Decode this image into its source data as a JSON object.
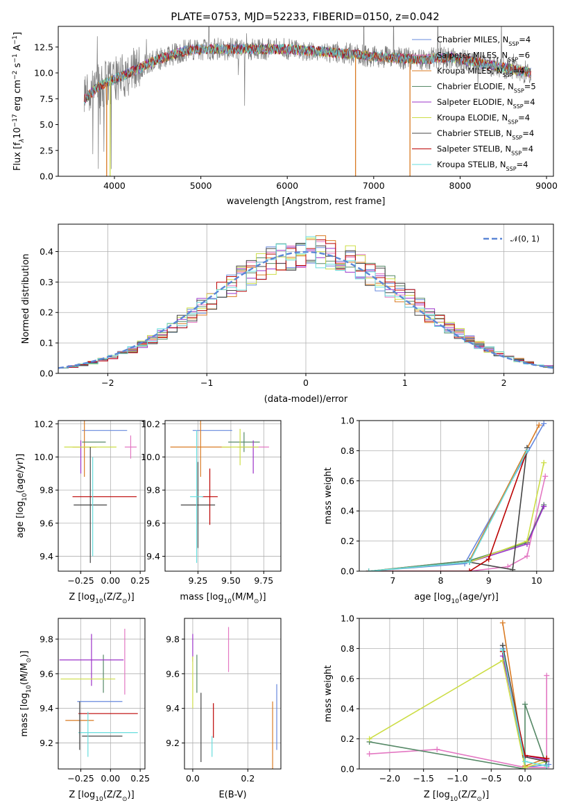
{
  "figure_title": "PLATE=0753, MJD=52233, FIBERID=0150, z=0.042",
  "series": [
    {
      "name": "Chabrier MILES, N",
      "sub": "SSP",
      "tail": "=4",
      "color": "#6688dd"
    },
    {
      "name": "Salpeter MILES, N",
      "sub": "SSP",
      "tail": "=6",
      "color": "#e377c2"
    },
    {
      "name": "Kroupa MILES, N",
      "sub": "SSP",
      "tail": "=4",
      "color": "#d97a22"
    },
    {
      "name": "Chabrier ELODIE, N",
      "sub": "SSP",
      "tail": "=5",
      "color": "#558866"
    },
    {
      "name": "Salpeter ELODIE, N",
      "sub": "SSP",
      "tail": "=4",
      "color": "#9b30c8"
    },
    {
      "name": "Kroupa ELODIE, N",
      "sub": "SSP",
      "tail": "=4",
      "color": "#ccdd44"
    },
    {
      "name": "Chabrier STELIB, N",
      "sub": "SSP",
      "tail": "=4",
      "color": "#444444"
    },
    {
      "name": "Salpeter STELIB, N",
      "sub": "SSP",
      "tail": "=4",
      "color": "#bb0000"
    },
    {
      "name": "Kroupa STELIB, N",
      "sub": "SSP",
      "tail": "=4",
      "color": "#66dddd"
    }
  ],
  "chart_data": [
    {
      "id": "spectrum",
      "type": "line",
      "xlabel": "wavelength [Angstrom, rest frame]",
      "ylabel": "Flux [f",
      "ylabel_sub": "λ",
      "ylabel_mid": "10",
      "ylabel_sup1": "−17",
      "ylabel_tail1": " erg cm",
      "ylabel_sup2": "−2",
      "ylabel_tail2": " s",
      "ylabel_sup3": "−1",
      "ylabel_tail3": " A",
      "ylabel_sup4": "−1",
      "ylabel_end": "]",
      "xlim": [
        3350,
        9080
      ],
      "ylim": [
        0,
        14.5
      ],
      "xticks": [
        4000,
        5000,
        6000,
        7000,
        8000,
        9000
      ],
      "yticks": [
        0.0,
        2.5,
        5.0,
        7.5,
        10.0,
        12.5
      ],
      "ytick_labels": [
        "0.0",
        "2.5",
        "5.0",
        "7.5",
        "10.0",
        "12.5"
      ],
      "data_range": [
        3650,
        8820
      ],
      "continuum": [
        [
          3650,
          7.4
        ],
        [
          3800,
          8.6
        ],
        [
          4000,
          9.4
        ],
        [
          4200,
          10.1
        ],
        [
          4500,
          11.3
        ],
        [
          4800,
          12.1
        ],
        [
          5000,
          12.3
        ],
        [
          5500,
          12.3
        ],
        [
          6000,
          12.3
        ],
        [
          6500,
          12.0
        ],
        [
          7000,
          11.6
        ],
        [
          7500,
          11.3
        ],
        [
          7900,
          11.5
        ],
        [
          8200,
          11.0
        ],
        [
          8500,
          10.5
        ],
        [
          8820,
          10.0
        ]
      ],
      "model_drops": [
        {
          "series": 2,
          "x": 3910
        },
        {
          "series": 5,
          "x": 3950
        },
        {
          "series": 2,
          "x": 6790
        },
        {
          "series": 2,
          "x": 7420
        }
      ]
    },
    {
      "id": "residuals",
      "type": "step",
      "xlabel": "(data-model)/error",
      "ylabel": "Normed distribution",
      "xlim": [
        -2.5,
        2.5
      ],
      "ylim": [
        0,
        0.49
      ],
      "xticks": [
        -2,
        -1,
        0,
        1,
        2
      ],
      "xtick_labels": [
        "−2",
        "−1",
        "0",
        "1",
        "2"
      ],
      "yticks": [
        0.0,
        0.1,
        0.2,
        0.3,
        0.4
      ],
      "ytick_labels": [
        "0.0",
        "0.1",
        "0.2",
        "0.3",
        "0.4"
      ],
      "bin_width": 0.1,
      "normal_label": "𝒩(0, 1)",
      "normal_color": "#5b86d6"
    },
    {
      "id": "age_vs_Z",
      "type": "errorbar",
      "xlabel": "Z [log",
      "xlabel_sub": "10",
      "xlabel_tail": "(Z/Z",
      "xlabel_sun": "⊙",
      "xlabel_end": ")]",
      "ylabel": "age  [log",
      "ylabel_sub": "10",
      "ylabel_tail": "(age/yr)]",
      "xlim": [
        -0.44,
        0.29
      ],
      "ylim": [
        9.31,
        10.22
      ],
      "xticks": [
        -0.25,
        0.0,
        0.25
      ],
      "xtick_labels": [
        "−0.25",
        "0.00",
        "0.25"
      ],
      "yticks": [
        9.4,
        9.6,
        9.8,
        10.0,
        10.2
      ],
      "ytick_labels": [
        "9.4",
        "9.6",
        "9.8",
        "10.0",
        "10.2"
      ],
      "points": [
        {
          "s": 0,
          "x": -0.05,
          "xe": 0.19,
          "y": 10.16,
          "ye": 0.0
        },
        {
          "s": 1,
          "x": 0.17,
          "xe": 0.05,
          "y": 10.06,
          "ye": 0.07
        },
        {
          "s": 2,
          "x": -0.22,
          "xe": 0.1,
          "y": 10.06,
          "ye": 0.18
        },
        {
          "s": 3,
          "x": -0.14,
          "xe": 0.1,
          "y": 10.09,
          "ye": 0.0
        },
        {
          "s": 4,
          "x": -0.25,
          "xe": 0.0,
          "y": 10.0,
          "ye": 0.1
        },
        {
          "s": 5,
          "x": -0.17,
          "xe": 0.22,
          "y": 10.06,
          "ye": 0.0
        },
        {
          "s": 6,
          "x": -0.17,
          "xe": 0.14,
          "y": 9.71,
          "ye": 0.35
        },
        {
          "s": 7,
          "x": -0.05,
          "xe": 0.27,
          "y": 9.76,
          "ye": 0.0
        },
        {
          "s": 8,
          "x": -0.15,
          "xe": 0.0,
          "y": 9.7,
          "ye": 0.3
        }
      ]
    },
    {
      "id": "age_vs_mass",
      "type": "errorbar",
      "xlabel": "mass [log",
      "xlabel_sub": "10",
      "xlabel_tail": "(M/M",
      "xlabel_sun": "⊙",
      "xlabel_end": ")]",
      "xlim": [
        9.0,
        9.88
      ],
      "ylim": [
        9.31,
        10.22
      ],
      "xticks": [
        9.25,
        9.5,
        9.75
      ],
      "xtick_labels": [
        "9.25",
        "9.50",
        "9.75"
      ],
      "yticks": [
        9.4,
        9.6,
        9.8,
        10.0,
        10.2
      ],
      "ytick_labels": [
        "9.4",
        "9.6",
        "9.8",
        "10.0",
        "10.2"
      ],
      "points": [
        {
          "s": 0,
          "x": 9.36,
          "xe": 0.15,
          "y": 10.16,
          "ye": 0.0
        },
        {
          "s": 1,
          "x": 9.67,
          "xe": 0.12,
          "y": 10.06,
          "ye": 0.0
        },
        {
          "s": 2,
          "x": 9.27,
          "xe": 0.23,
          "y": 10.06,
          "ye": 0.18
        },
        {
          "s": 3,
          "x": 9.6,
          "xe": 0.12,
          "y": 10.09,
          "ye": 0.06
        },
        {
          "s": 4,
          "x": 9.67,
          "xe": 0.0,
          "y": 10.0,
          "ye": 0.1
        },
        {
          "s": 5,
          "x": 9.57,
          "xe": 0.14,
          "y": 10.06,
          "ye": 0.11
        },
        {
          "s": 6,
          "x": 9.25,
          "xe": 0.13,
          "y": 9.71,
          "ye": 0.26
        },
        {
          "s": 7,
          "x": 9.34,
          "xe": 0.06,
          "y": 9.76,
          "ye": 0.17
        },
        {
          "s": 8,
          "x": 9.24,
          "xe": 0.05,
          "y": 9.76,
          "ye": 0.4
        }
      ]
    },
    {
      "id": "mass_weight_vs_age",
      "type": "line",
      "xlabel": "age  [log",
      "xlabel_sub": "10",
      "xlabel_tail": "(age/yr)]",
      "ylabel": "mass weight",
      "xlim": [
        6.3,
        10.35
      ],
      "ylim": [
        0,
        1
      ],
      "xticks": [
        7,
        8,
        9,
        10
      ],
      "yticks": [
        0.0,
        0.2,
        0.4,
        0.6,
        0.8,
        1.0
      ],
      "ytick_labels": [
        "0.0",
        "0.2",
        "0.4",
        "0.6",
        "0.8",
        "1.0"
      ],
      "curves": [
        {
          "s": 0,
          "x": [
            6.5,
            8.5,
            10.15
          ],
          "y": [
            0.0,
            0.05,
            0.98
          ]
        },
        {
          "s": 1,
          "x": [
            6.5,
            8.6,
            9.4,
            9.8,
            10.18
          ],
          "y": [
            0.0,
            0.0,
            0.03,
            0.1,
            0.63
          ]
        },
        {
          "s": 2,
          "x": [
            6.5,
            8.6,
            10.05
          ],
          "y": [
            0.0,
            0.07,
            0.97
          ]
        },
        {
          "s": 3,
          "x": [
            6.5,
            8.6,
            9.8,
            10.15
          ],
          "y": [
            0.0,
            0.07,
            0.19,
            0.44
          ]
        },
        {
          "s": 4,
          "x": [
            6.5,
            8.6,
            9.8,
            10.15
          ],
          "y": [
            0.0,
            0.06,
            0.18,
            0.43
          ]
        },
        {
          "s": 5,
          "x": [
            6.5,
            8.6,
            9.8,
            10.15
          ],
          "y": [
            0.0,
            0.06,
            0.2,
            0.72
          ]
        },
        {
          "s": 6,
          "x": [
            8.6,
            9.5,
            9.8
          ],
          "y": [
            0.06,
            0.01,
            0.82
          ]
        },
        {
          "s": 7,
          "x": [
            6.5,
            8.6,
            9.0,
            9.8
          ],
          "y": [
            0.0,
            0.0,
            0.08,
            0.8
          ]
        },
        {
          "s": 8,
          "x": [
            6.5,
            8.6,
            9.8
          ],
          "y": [
            0.0,
            0.06,
            0.8
          ]
        }
      ]
    },
    {
      "id": "mass_vs_Z",
      "type": "errorbar",
      "xlabel": "Z [log",
      "xlabel_sub": "10",
      "xlabel_tail": "(Z/Z",
      "xlabel_sun": "⊙",
      "xlabel_end": ")]",
      "ylabel": "mass [log",
      "ylabel_sub": "10",
      "ylabel_tail": "(M/M",
      "ylabel_sun": "⊙",
      "ylabel_end": ")]",
      "xlim": [
        -0.44,
        0.29
      ],
      "ylim": [
        9.05,
        9.92
      ],
      "xticks": [
        -0.25,
        0.0,
        0.25
      ],
      "xtick_labels": [
        "−0.25",
        "0.00",
        "0.25"
      ],
      "yticks": [
        9.2,
        9.4,
        9.6,
        9.8
      ],
      "ytick_labels": [
        "9.2",
        "9.4",
        "9.6",
        "9.8"
      ],
      "points": [
        {
          "s": 0,
          "x": -0.09,
          "xe": 0.19,
          "y": 9.44,
          "ye": 0.0
        },
        {
          "s": 1,
          "x": 0.12,
          "xe": 0.0,
          "y": 9.67,
          "ye": 0.19
        },
        {
          "s": 2,
          "x": -0.26,
          "xe": 0.12,
          "y": 9.33,
          "ye": 0.0
        },
        {
          "s": 3,
          "x": -0.06,
          "xe": 0.0,
          "y": 9.6,
          "ye": 0.11
        },
        {
          "s": 4,
          "x": -0.16,
          "xe": 0.27,
          "y": 9.68,
          "ye": 0.15
        },
        {
          "s": 5,
          "x": -0.19,
          "xe": 0.23,
          "y": 9.57,
          "ye": 0.0
        },
        {
          "s": 6,
          "x": -0.07,
          "xe": 0.17,
          "y": 9.24,
          "ye": 0.0
        },
        {
          "s": 7,
          "x": -0.02,
          "xe": 0.25,
          "y": 9.37,
          "ye": 0.0
        },
        {
          "s": 8,
          "x": -0.02,
          "xe": 0.25,
          "y": 9.26,
          "ye": 0.0
        },
        {
          "s": 6,
          "x": -0.26,
          "xe": 0.0,
          "y": 9.3,
          "ye": 0.14
        },
        {
          "s": 8,
          "x": -0.19,
          "xe": 0.0,
          "y": 9.25,
          "ye": 0.13
        }
      ]
    },
    {
      "id": "mass_vs_ebv",
      "type": "errorbar",
      "xlabel": "E(B-V)",
      "xlim": [
        -0.03,
        0.32
      ],
      "ylim": [
        9.05,
        9.92
      ],
      "xticks": [
        0.0,
        0.2
      ],
      "xtick_labels": [
        "0.0",
        "0.2"
      ],
      "yticks": [
        9.2,
        9.4,
        9.6,
        9.8
      ],
      "ytick_labels": [
        "9.2",
        "9.4",
        "9.6",
        "9.8"
      ],
      "points": [
        {
          "s": 0,
          "x": 0.305,
          "xe": 0.0,
          "y": 9.35,
          "ye": 0.19
        },
        {
          "s": 1,
          "x": 0.13,
          "xe": 0.0,
          "y": 9.74,
          "ye": 0.13
        },
        {
          "s": 2,
          "x": 0.29,
          "xe": 0.0,
          "y": 9.2,
          "ye": 0.24
        },
        {
          "s": 3,
          "x": 0.015,
          "xe": 0.0,
          "y": 9.6,
          "ye": 0.11
        },
        {
          "s": 4,
          "x": 0.0,
          "xe": 0.0,
          "y": 9.75,
          "ye": 0.08
        },
        {
          "s": 5,
          "x": 0.0,
          "xe": 0.0,
          "y": 9.55,
          "ye": 0.15
        },
        {
          "s": 6,
          "x": 0.03,
          "xe": 0.0,
          "y": 9.29,
          "ye": 0.2
        },
        {
          "s": 7,
          "x": 0.075,
          "xe": 0.0,
          "y": 9.33,
          "ye": 0.1
        },
        {
          "s": 8,
          "x": 0.07,
          "xe": 0.0,
          "y": 9.18,
          "ye": 0.06
        }
      ]
    },
    {
      "id": "mass_weight_vs_Z",
      "type": "line",
      "xlabel": "Z [log",
      "xlabel_sub": "10",
      "xlabel_tail": "(Z/Z",
      "xlabel_sun": "⊙",
      "xlabel_end": ")]",
      "ylabel": "mass weight",
      "xlim": [
        -2.45,
        0.42
      ],
      "ylim": [
        0,
        1
      ],
      "xticks": [
        -2.0,
        -1.5,
        -1.0,
        -0.5,
        0.0
      ],
      "xtick_labels": [
        "−2.0",
        "−1.5",
        "−1.0",
        "−0.5",
        "0.0"
      ],
      "yticks": [
        0.0,
        0.2,
        0.4,
        0.6,
        0.8,
        1.0
      ],
      "ytick_labels": [
        "0.0",
        "0.2",
        "0.4",
        "0.6",
        "0.8",
        "1.0"
      ],
      "curves": [
        {
          "s": 0,
          "x": [
            -0.33,
            0.0,
            0.35
          ],
          "y": [
            0.8,
            0.01,
            0.03
          ]
        },
        {
          "s": 1,
          "x": [
            -2.3,
            -1.3,
            0.0,
            0.32,
            0.32
          ],
          "y": [
            0.1,
            0.13,
            0.01,
            0.01,
            0.62
          ]
        },
        {
          "s": 2,
          "x": [
            -0.33,
            0.0,
            0.32
          ],
          "y": [
            0.97,
            0.02,
            0.07
          ]
        },
        {
          "s": 3,
          "x": [
            -2.3,
            0.0,
            0.0,
            0.32
          ],
          "y": [
            0.18,
            0.0,
            0.43,
            0.02
          ]
        },
        {
          "s": 4,
          "x": [
            -0.33,
            0.0,
            0.32
          ],
          "y": [
            0.75,
            0.09,
            0.06
          ]
        },
        {
          "s": 5,
          "x": [
            -2.3,
            -0.33,
            0.0,
            0.32
          ],
          "y": [
            0.2,
            0.72,
            0.01,
            0.05
          ]
        },
        {
          "s": 6,
          "x": [
            -0.33,
            0.0,
            0.32
          ],
          "y": [
            0.82,
            0.08,
            0.05
          ]
        },
        {
          "s": 7,
          "x": [
            -0.33,
            0.0,
            0.32
          ],
          "y": [
            0.78,
            0.09,
            0.07
          ]
        },
        {
          "s": 8,
          "x": [
            -0.33,
            0.0,
            0.32
          ],
          "y": [
            0.79,
            0.05,
            0.02
          ]
        }
      ]
    }
  ]
}
